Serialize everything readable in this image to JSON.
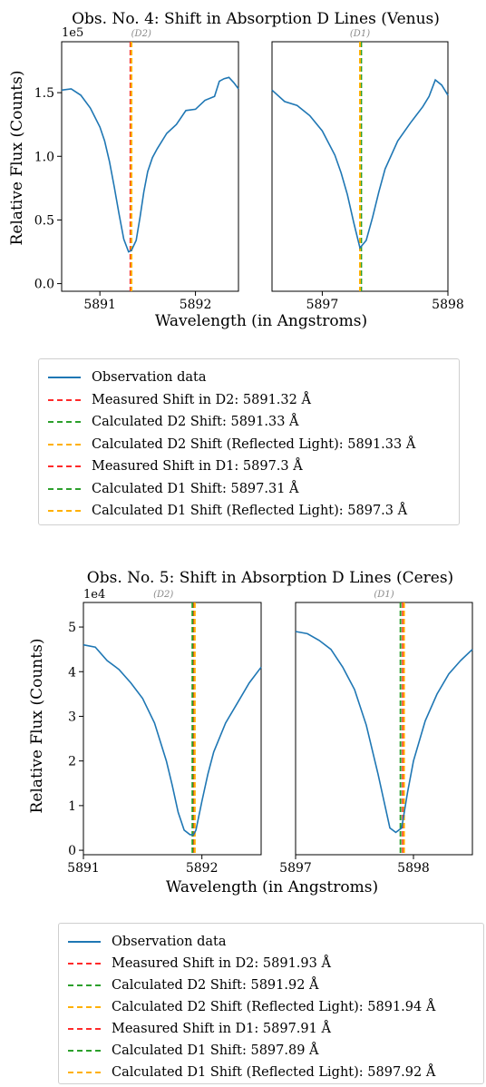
{
  "figures": [
    {
      "title": "Obs. No. 4: Shift in Absorption D Lines (Venus)",
      "ylabel": "Relative Flux (Counts)",
      "xlabel": "Wavelength (in Angstroms)",
      "offset_text": "1e5",
      "legend": [
        {
          "label": "Observation data",
          "style": "solid",
          "color": "#1f77b4"
        },
        {
          "label": "Measured Shift in D2: 5891.32 Å",
          "style": "dashed",
          "color": "#ff2a2a"
        },
        {
          "label": "Calculated D2 Shift: 5891.33 Å",
          "style": "dashed",
          "color": "#2ca02c"
        },
        {
          "label": "Calculated D2 Shift (Reflected Light): 5891.33 Å",
          "style": "dashed",
          "color": "#ffb000"
        },
        {
          "label": "Measured Shift in D1: 5897.3 Å",
          "style": "dashed",
          "color": "#ff2a2a"
        },
        {
          "label": "Calculated D1 Shift: 5897.31 Å",
          "style": "dashed",
          "color": "#2ca02c"
        },
        {
          "label": "Calculated D1 Shift (Reflected Light): 5897.3 Å",
          "style": "dashed",
          "color": "#ffb000"
        }
      ]
    },
    {
      "title": "Obs. No. 5: Shift in Absorption D Lines (Ceres)",
      "ylabel": "Relative Flux (Counts)",
      "xlabel": "Wavelength (in Angstroms)",
      "offset_text": "1e4",
      "legend": [
        {
          "label": "Observation data",
          "style": "solid",
          "color": "#1f77b4"
        },
        {
          "label": "Measured Shift in D2: 5891.93 Å",
          "style": "dashed",
          "color": "#ff2a2a"
        },
        {
          "label": "Calculated D2 Shift: 5891.92 Å",
          "style": "dashed",
          "color": "#2ca02c"
        },
        {
          "label": "Calculated D2 Shift (Reflected Light): 5891.94 Å",
          "style": "dashed",
          "color": "#ffb000"
        },
        {
          "label": "Measured Shift in D1: 5897.91 Å",
          "style": "dashed",
          "color": "#ff2a2a"
        },
        {
          "label": "Calculated D1 Shift: 5897.89 Å",
          "style": "dashed",
          "color": "#2ca02c"
        },
        {
          "label": "Calculated D1 Shift (Reflected Light): 5897.92 Å",
          "style": "dashed",
          "color": "#ffb000"
        }
      ]
    }
  ],
  "chart_data": [
    {
      "type": "line",
      "panel_label": "(D2)",
      "title": "Obs. No. 4: Shift in Absorption D Lines (Venus)",
      "xlabel": "Wavelength (in Angstroms)",
      "ylabel": "Relative Flux (Counts)",
      "xlim": [
        5890.6,
        5892.45
      ],
      "ylim": [
        -6000,
        190000
      ],
      "xticks": [
        "5891",
        "5892"
      ],
      "yticks": [
        "0.0",
        "0.5",
        "1.0",
        "1.5"
      ],
      "ytick_values": [
        0,
        50000,
        100000,
        150000
      ],
      "x": [
        5890.6,
        5890.7,
        5890.8,
        5890.9,
        5891.0,
        5891.05,
        5891.1,
        5891.15,
        5891.2,
        5891.25,
        5891.3,
        5891.33,
        5891.38,
        5891.42,
        5891.46,
        5891.5,
        5891.55,
        5891.6,
        5891.7,
        5891.8,
        5891.9,
        5892.0,
        5892.1,
        5892.2,
        5892.25,
        5892.3,
        5892.35,
        5892.4,
        5892.45
      ],
      "y": [
        152000,
        153000,
        148000,
        138000,
        123000,
        112000,
        96000,
        76000,
        55000,
        35000,
        25000,
        26000,
        34000,
        52000,
        72000,
        88000,
        99000,
        106000,
        118000,
        125000,
        136000,
        137000,
        144000,
        147000,
        159000,
        161000,
        162000,
        158000,
        153000
      ],
      "vlines": [
        {
          "x": 5891.32,
          "color": "#ff2a2a"
        },
        {
          "x": 5891.33,
          "color": "#2ca02c"
        },
        {
          "x": 5891.33,
          "color": "#ffb000"
        }
      ]
    },
    {
      "type": "line",
      "panel_label": "(D1)",
      "title": "Obs. No. 4: Shift in Absorption D Lines (Venus)",
      "xlabel": "Wavelength (in Angstroms)",
      "xlim": [
        5896.6,
        5898.0
      ],
      "ylim": [
        -6000,
        190000
      ],
      "xticks": [
        "5897",
        "5898"
      ],
      "x": [
        5896.6,
        5896.7,
        5896.8,
        5896.9,
        5897.0,
        5897.1,
        5897.15,
        5897.2,
        5897.25,
        5897.3,
        5897.35,
        5897.4,
        5897.45,
        5897.5,
        5897.6,
        5897.7,
        5897.8,
        5897.85,
        5897.9,
        5897.95,
        5898.0
      ],
      "y": [
        152000,
        143000,
        140000,
        132000,
        120000,
        101000,
        87000,
        70000,
        48000,
        28000,
        34000,
        52000,
        72000,
        90000,
        112000,
        126000,
        139000,
        147000,
        160000,
        156000,
        148000
      ],
      "vlines": [
        {
          "x": 5897.3,
          "color": "#ff2a2a"
        },
        {
          "x": 5897.31,
          "color": "#2ca02c"
        },
        {
          "x": 5897.3,
          "color": "#ffb000"
        }
      ]
    },
    {
      "type": "line",
      "panel_label": "(D2)",
      "title": "Obs. No. 5: Shift in Absorption D Lines (Ceres)",
      "xlabel": "Wavelength (in Angstroms)",
      "ylabel": "Relative Flux (Counts)",
      "xlim": [
        5891.0,
        5892.5
      ],
      "ylim": [
        -1000,
        55500
      ],
      "xticks": [
        "5891",
        "5892"
      ],
      "yticks": [
        "0",
        "1",
        "2",
        "3",
        "4",
        "5"
      ],
      "ytick_values": [
        0,
        10000,
        20000,
        30000,
        40000,
        50000
      ],
      "x": [
        5891.0,
        5891.1,
        5891.2,
        5891.3,
        5891.4,
        5891.5,
        5891.6,
        5891.7,
        5891.75,
        5891.8,
        5891.85,
        5891.9,
        5891.93,
        5891.95,
        5892.0,
        5892.05,
        5892.1,
        5892.2,
        5892.3,
        5892.4,
        5892.5
      ],
      "y": [
        46000,
        45500,
        42500,
        40500,
        37500,
        34000,
        28500,
        20000,
        14500,
        8500,
        4500,
        3500,
        3500,
        4500,
        11000,
        17000,
        22000,
        28500,
        33000,
        37500,
        41000
      ],
      "vlines": [
        {
          "x": 5891.93,
          "color": "#ff2a2a"
        },
        {
          "x": 5891.92,
          "color": "#2ca02c"
        },
        {
          "x": 5891.94,
          "color": "#ffb000"
        }
      ]
    },
    {
      "type": "line",
      "panel_label": "(D1)",
      "title": "Obs. No. 5: Shift in Absorption D Lines (Ceres)",
      "xlabel": "Wavelength (in Angstroms)",
      "xlim": [
        5897.0,
        5898.5
      ],
      "ylim": [
        -1000,
        55500
      ],
      "xticks": [
        "5897",
        "5898"
      ],
      "x": [
        5897.0,
        5897.1,
        5897.2,
        5897.3,
        5897.4,
        5897.5,
        5897.6,
        5897.7,
        5897.75,
        5897.8,
        5897.85,
        5897.9,
        5897.95,
        5898.0,
        5898.1,
        5898.2,
        5898.3,
        5898.4,
        5898.5
      ],
      "y": [
        49000,
        48500,
        47000,
        45000,
        41000,
        36000,
        28000,
        17000,
        11000,
        5000,
        4000,
        5000,
        13000,
        20000,
        29000,
        35000,
        39500,
        42500,
        45000
      ],
      "vlines": [
        {
          "x": 5897.91,
          "color": "#ff2a2a"
        },
        {
          "x": 5897.89,
          "color": "#2ca02c"
        },
        {
          "x": 5897.92,
          "color": "#ffb000"
        }
      ]
    }
  ]
}
